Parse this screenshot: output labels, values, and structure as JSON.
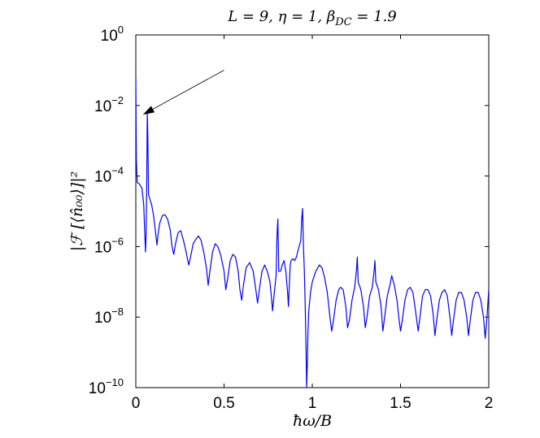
{
  "chart_data": {
    "type": "line",
    "title": "L = 9, η = 1, β_DC = 1.9",
    "title_parts": {
      "main": "L = 9, η = 1, β",
      "subscript": "DC",
      "tail": " = 1.9"
    },
    "xlabel": "ħω/B",
    "ylabel": "|ℱ [⟨n̂₀₀⟩]|²",
    "x_scale": "linear",
    "y_scale": "log",
    "xlim": [
      0,
      2
    ],
    "ylim": [
      1e-10,
      1
    ],
    "x_ticks": [
      {
        "value": 0,
        "label": "0"
      },
      {
        "value": 0.5,
        "label": "0.5"
      },
      {
        "value": 1,
        "label": "1"
      },
      {
        "value": 1.5,
        "label": "1.5"
      },
      {
        "value": 2,
        "label": "2"
      }
    ],
    "y_ticks": [
      {
        "exp": -10,
        "base": "10",
        "sup": "−10"
      },
      {
        "exp": -8,
        "base": "10",
        "sup": "−8"
      },
      {
        "exp": -6,
        "base": "10",
        "sup": "−6"
      },
      {
        "exp": -4,
        "base": "10",
        "sup": "−4"
      },
      {
        "exp": -2,
        "base": "10",
        "sup": "−2"
      },
      {
        "exp": 0,
        "base": "10",
        "sup": "0"
      }
    ],
    "grid": false,
    "series": [
      {
        "color": "#0000ff",
        "points": [
          [
            0.0,
            0.06
          ],
          [
            0.003,
            0.0003
          ],
          [
            0.008,
            6.5e-05
          ],
          [
            0.02,
            6e-05
          ],
          [
            0.035,
            4.5e-05
          ],
          [
            0.045,
            1.5e-05
          ],
          [
            0.05,
            3e-06
          ],
          [
            0.055,
            7e-07
          ],
          [
            0.058,
            2e-06
          ],
          [
            0.062,
            6e-05
          ],
          [
            0.065,
            0.006
          ],
          [
            0.068,
            0.0015
          ],
          [
            0.072,
            3e-05
          ],
          [
            0.08,
            2.2e-05
          ],
          [
            0.09,
            1.5e-05
          ],
          [
            0.1,
            8e-06
          ],
          [
            0.11,
            3e-06
          ],
          [
            0.12,
            1.1e-06
          ],
          [
            0.125,
            2e-06
          ],
          [
            0.135,
            4.5e-06
          ],
          [
            0.15,
            7.5e-06
          ],
          [
            0.165,
            8e-06
          ],
          [
            0.18,
            6e-06
          ],
          [
            0.195,
            3e-06
          ],
          [
            0.205,
            1e-06
          ],
          [
            0.215,
            6e-07
          ],
          [
            0.225,
            1.2e-06
          ],
          [
            0.24,
            2.5e-06
          ],
          [
            0.255,
            2.8e-06
          ],
          [
            0.27,
            1.5e-06
          ],
          [
            0.285,
            7e-07
          ],
          [
            0.3,
            3e-07
          ],
          [
            0.31,
            5e-07
          ],
          [
            0.325,
            1.2e-06
          ],
          [
            0.34,
            1.6e-06
          ],
          [
            0.355,
            2e-06
          ],
          [
            0.37,
            1.5e-06
          ],
          [
            0.385,
            7e-07
          ],
          [
            0.4,
            2.5e-07
          ],
          [
            0.41,
            8e-08
          ],
          [
            0.42,
            2e-07
          ],
          [
            0.435,
            7e-07
          ],
          [
            0.45,
            1.2e-06
          ],
          [
            0.465,
            1e-06
          ],
          [
            0.48,
            6e-07
          ],
          [
            0.5,
            2e-07
          ],
          [
            0.51,
            6e-08
          ],
          [
            0.52,
            1.2e-07
          ],
          [
            0.535,
            4e-07
          ],
          [
            0.55,
            6e-07
          ],
          [
            0.565,
            5e-07
          ],
          [
            0.58,
            2e-07
          ],
          [
            0.59,
            6e-08
          ],
          [
            0.6,
            3e-08
          ],
          [
            0.61,
            8e-08
          ],
          [
            0.625,
            2.5e-07
          ],
          [
            0.645,
            3.5e-07
          ],
          [
            0.665,
            2e-07
          ],
          [
            0.68,
            6e-08
          ],
          [
            0.69,
            2.5e-08
          ],
          [
            0.7,
            6e-08
          ],
          [
            0.715,
            2e-07
          ],
          [
            0.73,
            3e-07
          ],
          [
            0.745,
            2e-07
          ],
          [
            0.76,
            1e-07
          ],
          [
            0.77,
            3e-08
          ],
          [
            0.775,
            1.5e-08
          ],
          [
            0.785,
            5e-08
          ],
          [
            0.795,
            1.5e-07
          ],
          [
            0.8,
            2e-06
          ],
          [
            0.805,
            6e-06
          ],
          [
            0.81,
            2e-07
          ],
          [
            0.82,
            2e-07
          ],
          [
            0.83,
            3e-07
          ],
          [
            0.84,
            4e-07
          ],
          [
            0.85,
            2e-07
          ],
          [
            0.86,
            5e-08
          ],
          [
            0.865,
            2e-08
          ],
          [
            0.87,
            8e-08
          ],
          [
            0.875,
            3e-07
          ],
          [
            0.88,
            4e-07
          ],
          [
            0.89,
            4.5e-07
          ],
          [
            0.9,
            4e-07
          ],
          [
            0.91,
            5e-07
          ],
          [
            0.92,
            8e-07
          ],
          [
            0.935,
            1.5e-06
          ],
          [
            0.94,
            6e-06
          ],
          [
            0.945,
            1.2e-05
          ],
          [
            0.95,
            1e-06
          ],
          [
            0.955,
            2e-07
          ],
          [
            0.96,
            2e-08
          ],
          [
            0.965,
            1e-09
          ],
          [
            0.968,
            1e-10
          ],
          [
            0.972,
            5e-10
          ],
          [
            0.975,
            3e-09
          ],
          [
            0.98,
            1.5e-08
          ],
          [
            0.99,
            5e-08
          ],
          [
            1.0,
            1e-07
          ],
          [
            1.02,
            2e-07
          ],
          [
            1.04,
            3e-07
          ],
          [
            1.055,
            2.5e-07
          ],
          [
            1.07,
            1.3e-07
          ],
          [
            1.085,
            5e-08
          ],
          [
            1.1,
            1e-08
          ],
          [
            1.11,
            4e-09
          ],
          [
            1.12,
            8e-09
          ],
          [
            1.135,
            3e-08
          ],
          [
            1.15,
            6e-08
          ],
          [
            1.16,
            7e-08
          ],
          [
            1.175,
            6e-08
          ],
          [
            1.19,
            2e-08
          ],
          [
            1.2,
            5e-09
          ],
          [
            1.21,
            8e-09
          ],
          [
            1.225,
            3e-08
          ],
          [
            1.24,
            7e-08
          ],
          [
            1.25,
            2e-07
          ],
          [
            1.255,
            5e-07
          ],
          [
            1.26,
            1e-07
          ],
          [
            1.275,
            6e-08
          ],
          [
            1.29,
            2e-08
          ],
          [
            1.3,
            5e-09
          ],
          [
            1.31,
            1e-08
          ],
          [
            1.325,
            4e-08
          ],
          [
            1.34,
            7e-08
          ],
          [
            1.35,
            2e-07
          ],
          [
            1.355,
            4e-07
          ],
          [
            1.36,
            1e-07
          ],
          [
            1.375,
            6e-08
          ],
          [
            1.39,
            2e-08
          ],
          [
            1.4,
            4e-09
          ],
          [
            1.41,
            1e-08
          ],
          [
            1.425,
            4e-08
          ],
          [
            1.44,
            8e-08
          ],
          [
            1.45,
            1.5e-07
          ],
          [
            1.465,
            8e-08
          ],
          [
            1.48,
            3e-08
          ],
          [
            1.49,
            1e-08
          ],
          [
            1.5,
            4e-09
          ],
          [
            1.51,
            8e-09
          ],
          [
            1.525,
            3e-08
          ],
          [
            1.54,
            6e-08
          ],
          [
            1.555,
            7e-08
          ],
          [
            1.57,
            5e-08
          ],
          [
            1.585,
            1.5e-08
          ],
          [
            1.6,
            4e-09
          ],
          [
            1.61,
            1e-08
          ],
          [
            1.625,
            4e-08
          ],
          [
            1.64,
            6e-08
          ],
          [
            1.655,
            6e-08
          ],
          [
            1.67,
            4e-08
          ],
          [
            1.685,
            1.2e-08
          ],
          [
            1.695,
            3e-09
          ],
          [
            1.705,
            8e-09
          ],
          [
            1.72,
            3e-08
          ],
          [
            1.735,
            5e-08
          ],
          [
            1.75,
            6e-08
          ],
          [
            1.765,
            4e-08
          ],
          [
            1.78,
            1e-08
          ],
          [
            1.79,
            3e-09
          ],
          [
            1.8,
            8e-09
          ],
          [
            1.815,
            3e-08
          ],
          [
            1.83,
            5e-08
          ],
          [
            1.845,
            5e-08
          ],
          [
            1.86,
            3e-08
          ],
          [
            1.875,
            1e-08
          ],
          [
            1.885,
            3e-09
          ],
          [
            1.895,
            8e-09
          ],
          [
            1.91,
            3e-08
          ],
          [
            1.925,
            5e-08
          ],
          [
            1.94,
            5e-08
          ],
          [
            1.955,
            3e-08
          ],
          [
            1.97,
            1e-08
          ],
          [
            1.98,
            2.5e-09
          ],
          [
            1.99,
            1e-08
          ],
          [
            2.0,
            6e-08
          ]
        ]
      }
    ],
    "annotations": [
      {
        "type": "arrow",
        "from": [
          0.5,
          0.1
        ],
        "to": [
          0.04,
          0.0055
        ],
        "color": "#000000"
      }
    ]
  }
}
